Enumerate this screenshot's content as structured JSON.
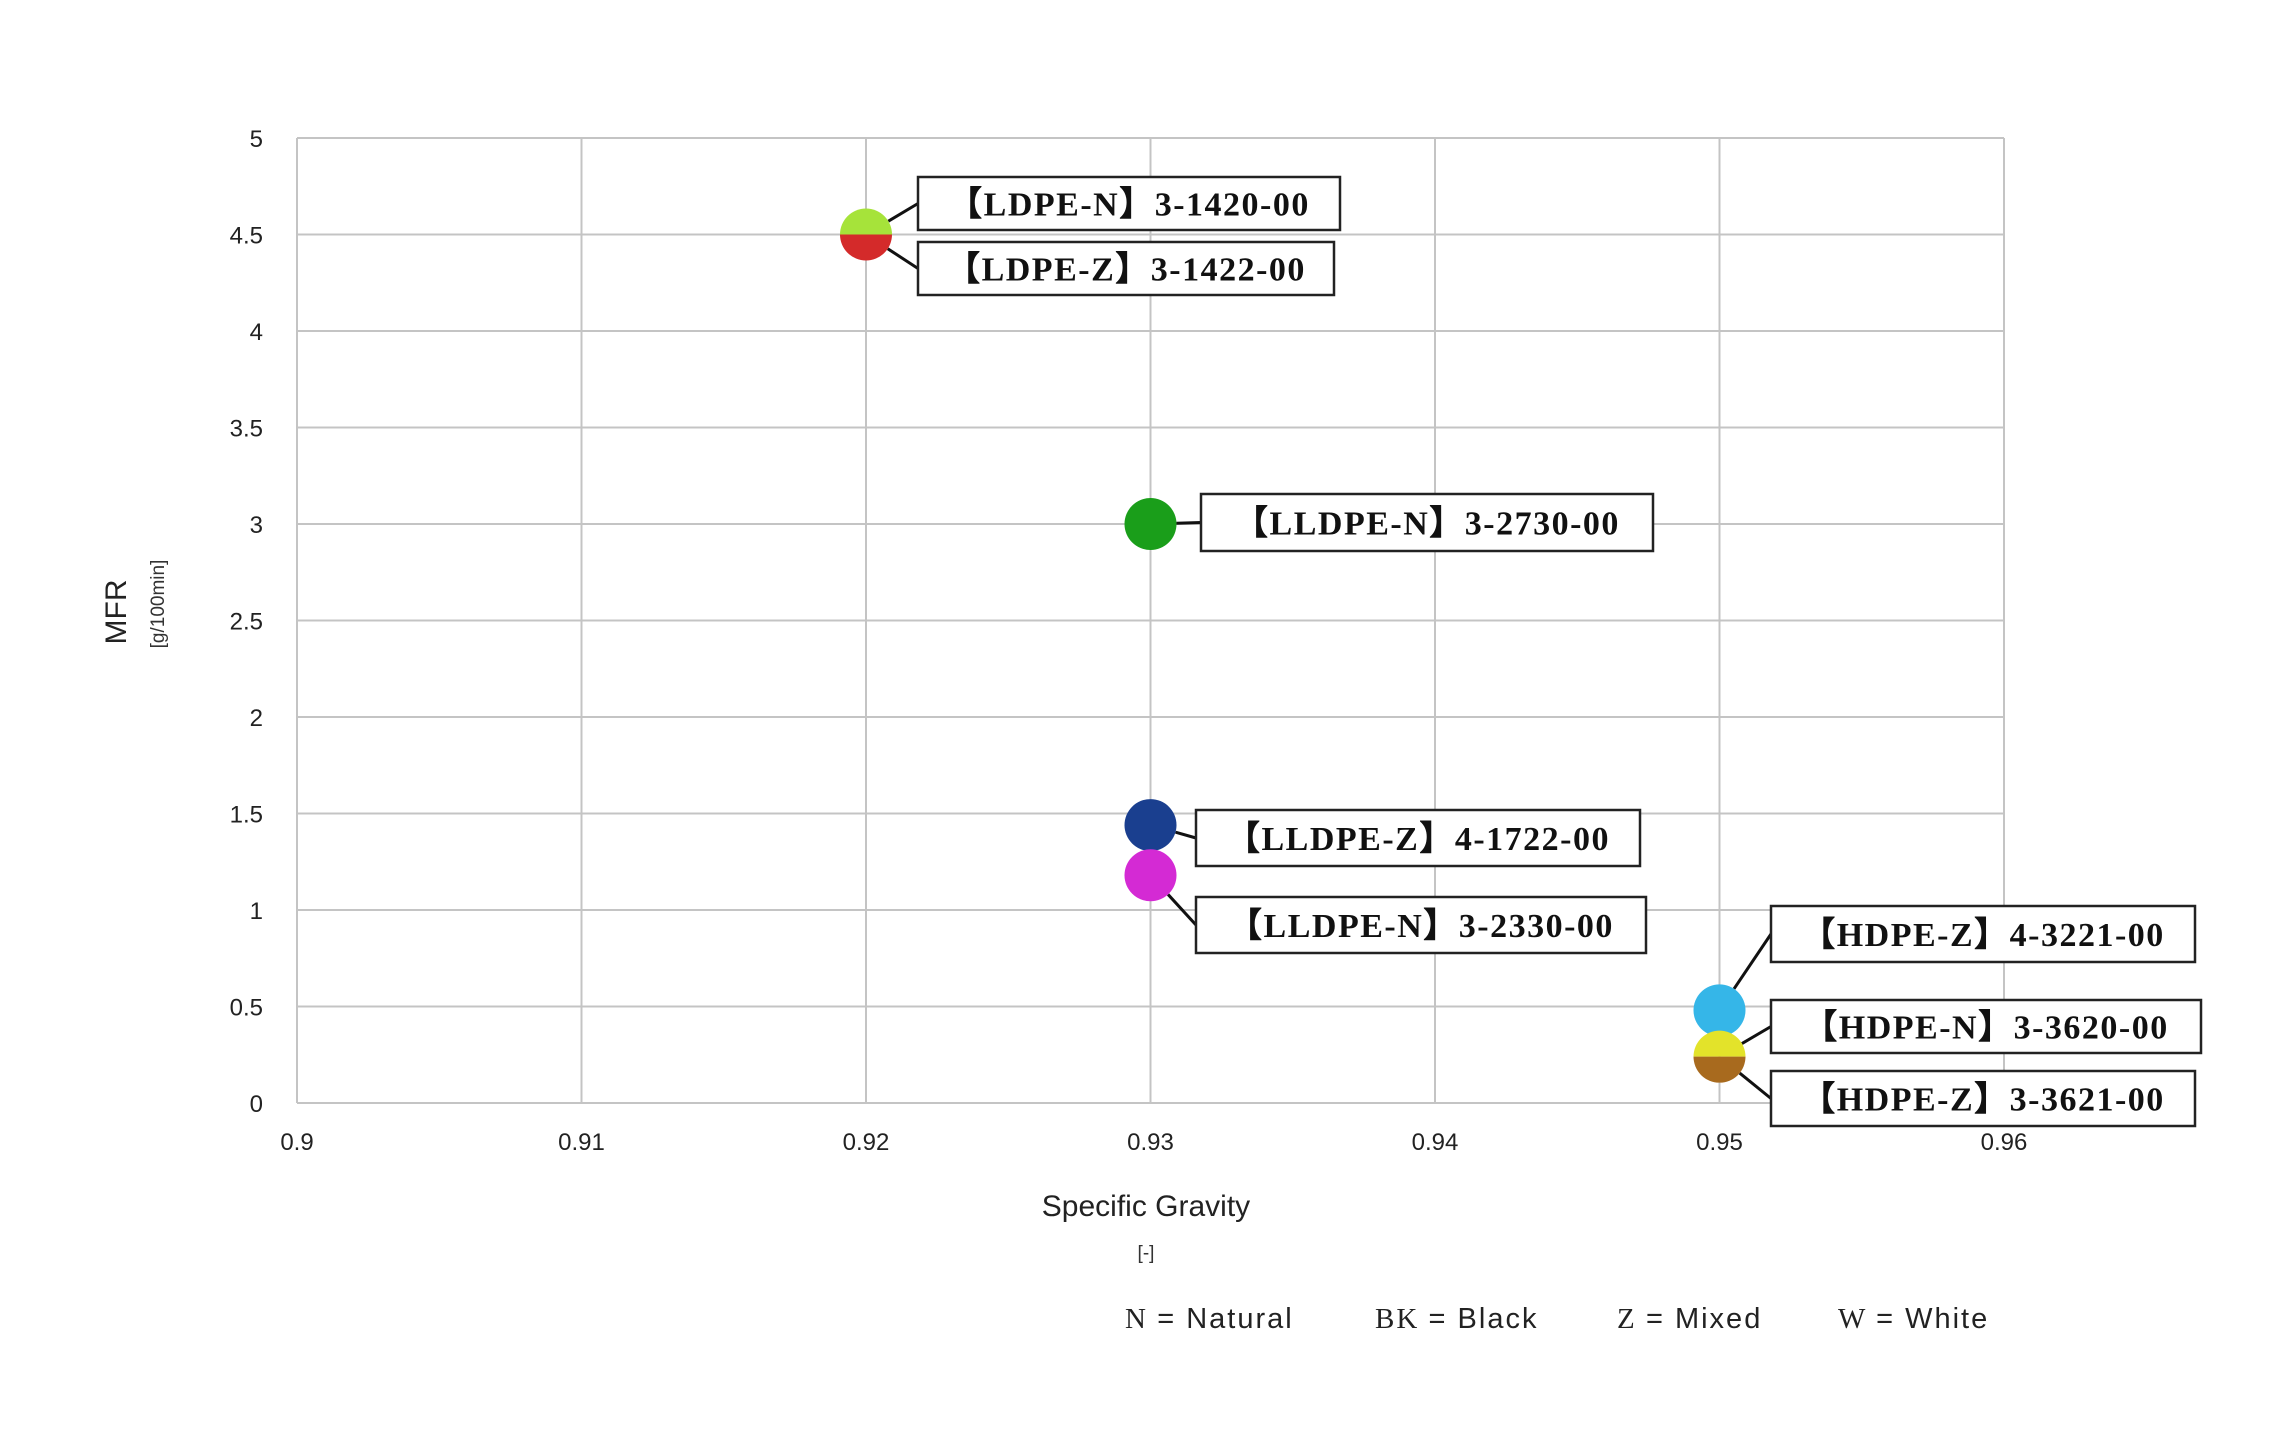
{
  "chart_data": {
    "type": "scatter",
    "xlabel": "Specific Gravity",
    "xunit": "[-]",
    "ylabel": "MFR",
    "yunit": "[g/100min]",
    "xlim": [
      0.9,
      0.96
    ],
    "ylim": [
      0,
      5
    ],
    "x_ticks": [
      "0.9",
      "0.91",
      "0.92",
      "0.93",
      "0.94",
      "0.95",
      "0.96"
    ],
    "y_ticks": [
      "0",
      "0.5",
      "1",
      "1.5",
      "2",
      "2.5",
      "3",
      "3.5",
      "4",
      "4.5",
      "5"
    ],
    "grid": true,
    "points": [
      {
        "x": 0.92,
        "y": 4.5,
        "colors": [
          "#a6e33a",
          "#d42a2a"
        ],
        "labels": [
          "【LDPE-N】3-1420-00",
          "【LDPE-Z】3-1422-00"
        ]
      },
      {
        "x": 0.93,
        "y": 3.0,
        "colors": [
          "#1a9e1a"
        ],
        "labels": [
          "【LLDPE-N】3-2730-00"
        ]
      },
      {
        "x": 0.93,
        "y": 1.44,
        "colors": [
          "#1a3f8f"
        ],
        "labels": [
          "【LLDPE-Z】4-1722-00"
        ]
      },
      {
        "x": 0.93,
        "y": 1.18,
        "colors": [
          "#d42ad4"
        ],
        "labels": [
          "【LLDPE-N】3-2330-00"
        ]
      },
      {
        "x": 0.95,
        "y": 0.48,
        "colors": [
          "#35b6e8"
        ],
        "labels": [
          "【HDPE-Z】4-3221-00"
        ]
      },
      {
        "x": 0.95,
        "y": 0.24,
        "colors": [
          "#e3e32a",
          "#a86a1e"
        ],
        "labels": [
          "【HDPE-N】3-3620-00",
          "【HDPE-Z】3-3621-00"
        ]
      }
    ],
    "legend": [
      {
        "key": "N",
        "text": "= Natural"
      },
      {
        "key": "BK",
        "text": "= Black"
      },
      {
        "key": "Z",
        "text": "= Mixed"
      },
      {
        "key": "W",
        "text": "= White"
      }
    ]
  }
}
